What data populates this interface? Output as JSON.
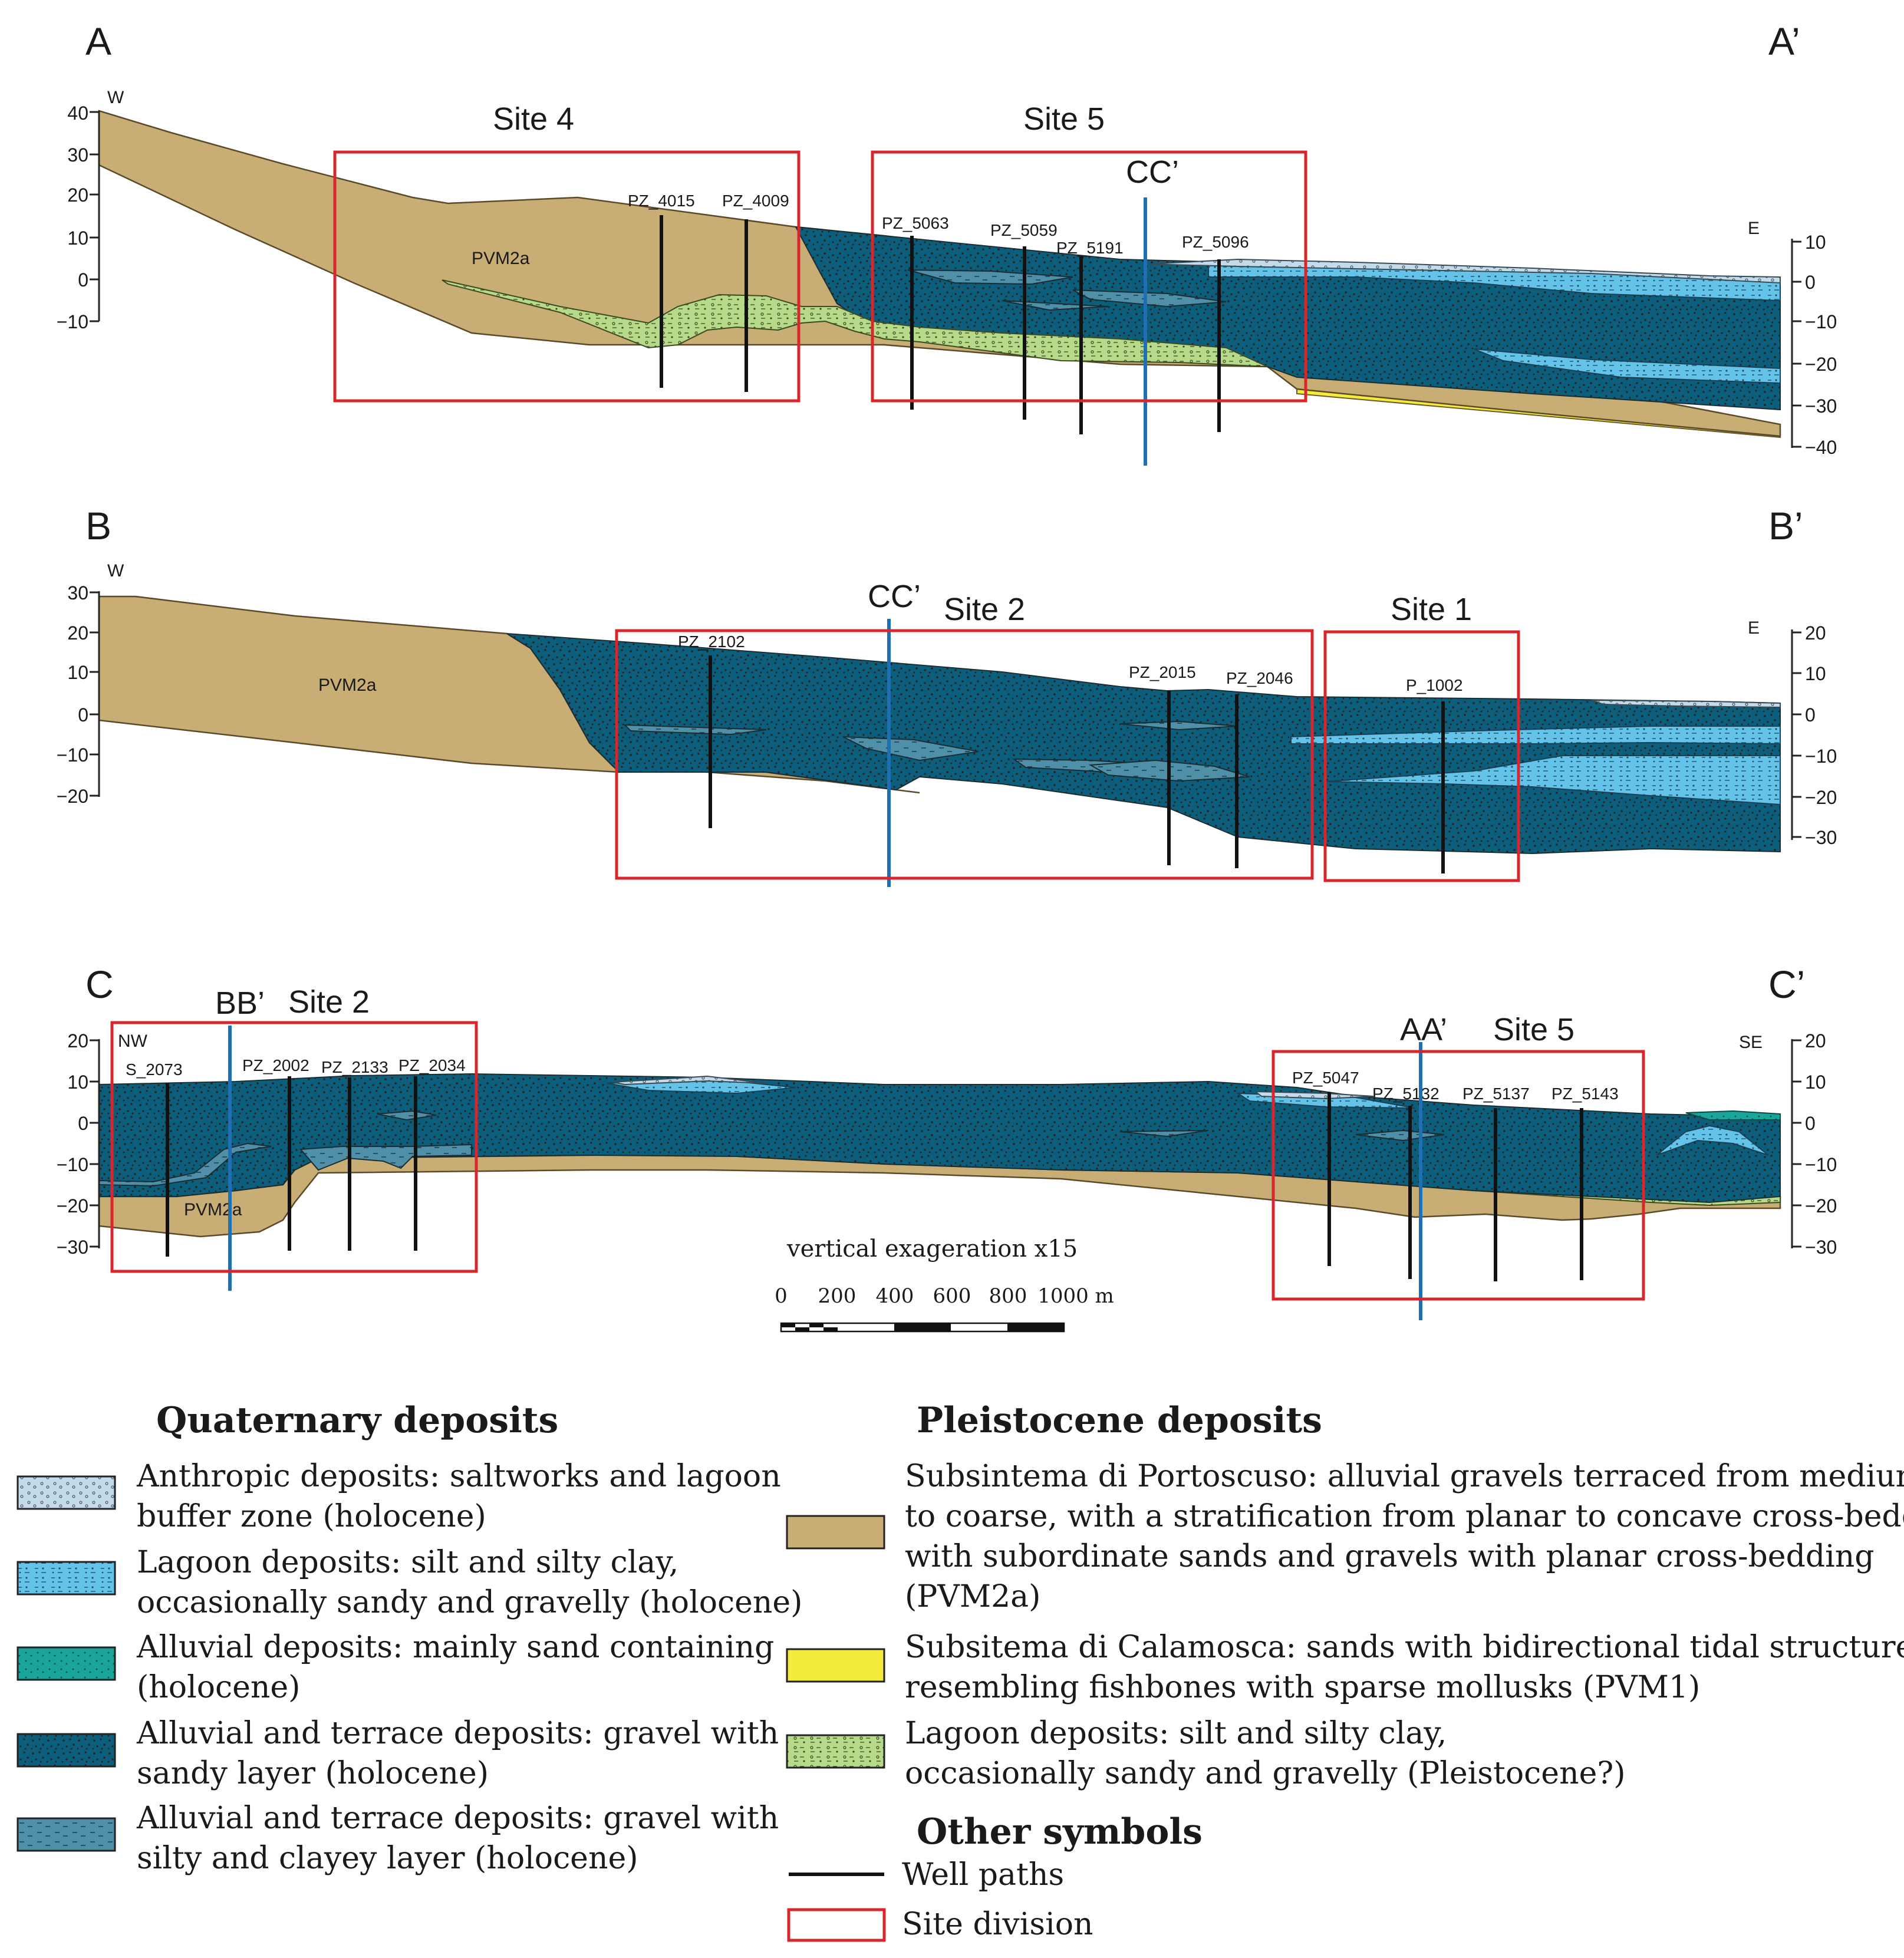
{
  "colors": {
    "pvm2a": "#c8ad74",
    "pvm1": "#f4ec3c",
    "alluvial_gravel_sandy": "#0c5f7c",
    "alluvial_gravel_silty": "#4f8fa8",
    "alluvial_sand": "#1aa59a",
    "lagoon_holocene": "#63c3e8",
    "anthropic": "#c4dbe9",
    "lagoon_pleistocene": "#b7d98a",
    "site_box": "#d8262c",
    "cross_line": "#1f6fb5",
    "well": "#111111"
  },
  "sections": [
    {
      "id": "AA",
      "start_letter": "A",
      "end_letter": "A’",
      "left_dir": "W",
      "right_dir": "E",
      "left_axis_ticks": [
        "40",
        "30",
        "20",
        "10",
        "0",
        "−10"
      ],
      "right_axis_ticks": [
        "10",
        "0",
        "−10",
        "−20",
        "−30",
        "−40"
      ],
      "sites": [
        "Site 4",
        "Site 5"
      ],
      "cross_label": "CC’",
      "unit_label": "PVM2a",
      "wells": [
        "PZ_4015",
        "PZ_4009",
        "PZ_5063",
        "PZ_5059",
        "PZ_5191",
        "PZ_5096"
      ]
    },
    {
      "id": "BB",
      "start_letter": "B",
      "end_letter": "B’",
      "left_dir": "W",
      "right_dir": "E",
      "left_axis_ticks": [
        "30",
        "20",
        "10",
        "0",
        "−10",
        "−20"
      ],
      "right_axis_ticks": [
        "20",
        "10",
        "0",
        "−10",
        "−20",
        "−30"
      ],
      "sites": [
        "Site 2",
        "Site 1"
      ],
      "cross_label": "CC’",
      "unit_label": "PVM2a",
      "wells": [
        "PZ_2102",
        "PZ_2015",
        "PZ_2046",
        "P_1002"
      ]
    },
    {
      "id": "CC",
      "start_letter": "C",
      "end_letter": "C’",
      "left_dir": "NW",
      "right_dir": "SE",
      "left_axis_ticks": [
        "20",
        "10",
        "0",
        "−10",
        "−20",
        "−30"
      ],
      "right_axis_ticks": [
        "20",
        "10",
        "0",
        "−10",
        "−20",
        "−30"
      ],
      "sites": [
        "Site 2",
        "Site 5"
      ],
      "cross_labels": [
        "BB’",
        "AA’"
      ],
      "unit_label": "PVM2a",
      "wells": [
        "S_2073",
        "PZ_2002",
        "PZ_2133",
        "PZ_2034",
        "PZ_5047",
        "PZ_5132",
        "PZ_5137",
        "PZ_5143"
      ]
    }
  ],
  "scale": {
    "caption": "vertical exageration x15",
    "ticks": [
      "0",
      "200",
      "400",
      "600",
      "800",
      "1000 m"
    ]
  },
  "legend": {
    "quaternary_title": "Quaternary deposits",
    "pleistocene_title": "Pleistocene deposits",
    "other_title": "Other symbols",
    "quaternary_items": [
      {
        "lines": [
          "Anthropic deposits: saltworks and lagoon",
          "buffer zone (holocene)"
        ]
      },
      {
        "lines": [
          "Lagoon deposits: silt and silty clay,",
          "occasionally sandy and gravelly (holocene)"
        ]
      },
      {
        "lines": [
          "Alluvial deposits: mainly sand containing",
          "(holocene)"
        ]
      },
      {
        "lines": [
          "Alluvial and terrace deposits: gravel with",
          "sandy layer (holocene)"
        ]
      },
      {
        "lines": [
          "Alluvial and terrace deposits: gravel with",
          "silty and clayey layer (holocene)"
        ]
      }
    ],
    "pleistocene_items": [
      {
        "lines": [
          "Subsintema di Portoscuso: alluvial gravels terraced from medium",
          "to coarse, with a stratification from planar to concave cross-bedding,",
          "with subordinate sands and gravels with planar cross-bedding",
          "(PVM2a)"
        ]
      },
      {
        "lines": [
          "Subsitema di Calamosca: sands with bidirectional tidal structure",
          "resembling fishbones with sparse mollusks (PVM1)"
        ]
      },
      {
        "lines": [
          "Lagoon deposits: silt and silty clay,",
          "occasionally sandy and gravelly (Pleistocene?)"
        ]
      }
    ],
    "other_items": [
      "Well paths",
      "Site division"
    ]
  }
}
